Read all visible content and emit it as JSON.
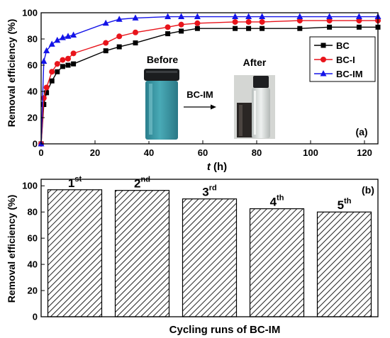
{
  "colors": {
    "BC": "#000000",
    "BC-I": "#e8141b",
    "BC-IM": "#1414e8",
    "vial_blue": "#3f9aa7",
    "vial_clear": "#d9dedc"
  },
  "chart_data": [
    {
      "type": "line",
      "panel_label": "(a)",
      "xlabel_italic": "t",
      "xlabel_unit": " (h)",
      "ylabel": "Removal efficiency (%)",
      "xlim": [
        0,
        125
      ],
      "ylim": [
        0,
        100
      ],
      "x_ticks": [
        0,
        20,
        40,
        60,
        80,
        100,
        120
      ],
      "y_ticks": [
        0,
        20,
        40,
        60,
        80,
        100
      ],
      "legend_position": "top-right",
      "grid": false,
      "series": [
        {
          "name": "BC",
          "marker": "square",
          "color": "#000000",
          "x": [
            0,
            1,
            2,
            4,
            6,
            8,
            10,
            12,
            24,
            29,
            35,
            47,
            52,
            58,
            72,
            77,
            82,
            96,
            107,
            118,
            125
          ],
          "y": [
            0,
            30,
            39,
            48,
            55,
            59,
            60,
            61,
            71,
            74,
            77,
            84,
            86,
            88,
            88,
            88,
            88,
            88,
            89,
            89,
            89
          ]
        },
        {
          "name": "BC-I",
          "marker": "circle",
          "color": "#e8141b",
          "x": [
            0,
            1,
            2,
            4,
            6,
            8,
            10,
            12,
            24,
            29,
            35,
            47,
            52,
            58,
            72,
            77,
            82,
            96,
            107,
            118,
            125
          ],
          "y": [
            0,
            35,
            43,
            55,
            61,
            64,
            65,
            69,
            77,
            82,
            85,
            89,
            91,
            92,
            93,
            93,
            93,
            94,
            94,
            94,
            94
          ]
        },
        {
          "name": "BC-IM",
          "marker": "triangle",
          "color": "#1414e8",
          "x": [
            0,
            1,
            2,
            4,
            6,
            8,
            10,
            12,
            24,
            29,
            35,
            47,
            52,
            58,
            72,
            77,
            82,
            96,
            107,
            118,
            125
          ],
          "y": [
            0,
            63,
            71,
            76,
            79,
            81,
            82,
            83,
            92,
            95,
            96,
            97,
            97,
            97,
            97,
            97,
            97,
            97,
            97,
            97,
            97
          ]
        }
      ],
      "inset": {
        "before_label": "Before",
        "after_label": "After",
        "arrow_label": "BC-IM"
      }
    },
    {
      "type": "bar",
      "panel_label": "(b)",
      "xlabel": "Cycling runs of BC-IM",
      "ylabel": "Removal efficiency (%)",
      "ylim": [
        0,
        105
      ],
      "y_ticks": [
        0,
        20,
        40,
        60,
        80,
        100
      ],
      "grid": false,
      "fill": "hatched",
      "categories": [
        {
          "num": "1",
          "sup": "st"
        },
        {
          "num": "2",
          "sup": "nd"
        },
        {
          "num": "3",
          "sup": "rd"
        },
        {
          "num": "4",
          "sup": "th"
        },
        {
          "num": "5",
          "sup": "th"
        }
      ],
      "values": [
        97,
        96.5,
        90,
        82.5,
        80
      ]
    }
  ]
}
